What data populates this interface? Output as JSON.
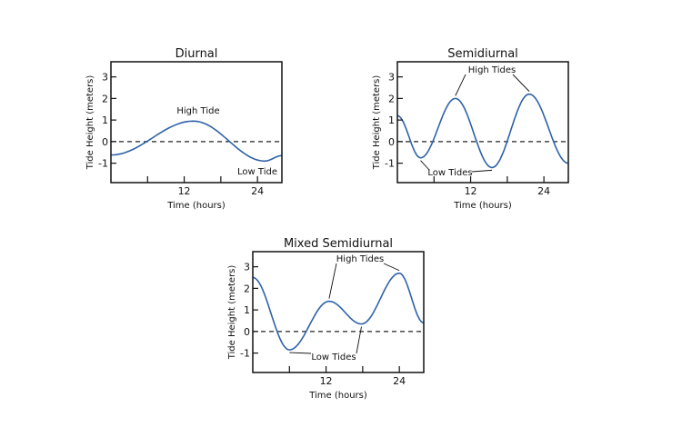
{
  "chart_data": [
    {
      "type": "line",
      "title": "Diurnal",
      "xlabel": "Time (hours)",
      "ylabel": "Tide Height (meters)",
      "xlim": [
        0,
        28
      ],
      "ylim": [
        -1.9,
        3.7
      ],
      "xticks": [
        6,
        12,
        18,
        24
      ],
      "xtick_labels": [
        "",
        "12",
        "",
        "24"
      ],
      "yticks": [
        3,
        2,
        1,
        0,
        -1
      ],
      "ytick_labels": [
        "3",
        "2",
        "1",
        "0",
        "-1"
      ],
      "reference_line": 0,
      "series": [
        {
          "name": "tide",
          "color": "#2e62a8",
          "extrema": [
            [
              0,
              -0.62
            ],
            [
              13.5,
              0.95
            ],
            [
              25.2,
              -0.9
            ],
            [
              28,
              -0.65
            ]
          ]
        }
      ],
      "annotations": [
        {
          "text": "High Tide",
          "targets": []
        },
        {
          "text": "Low Tide",
          "targets": []
        }
      ]
    },
    {
      "type": "line",
      "title": "Semidiurnal",
      "xlabel": "Time (hours)",
      "ylabel": "Tide Height (meters)",
      "xlim": [
        0,
        28
      ],
      "ylim": [
        -1.9,
        3.7
      ],
      "xticks": [
        6,
        12,
        18,
        24
      ],
      "xtick_labels": [
        "",
        "12",
        "",
        "24"
      ],
      "yticks": [
        3,
        2,
        1,
        0,
        -1
      ],
      "ytick_labels": [
        "3",
        "2",
        "1",
        "0",
        "-1"
      ],
      "reference_line": 0,
      "series": [
        {
          "name": "tide",
          "color": "#2e62a8",
          "extrema": [
            [
              0,
              1.2
            ],
            [
              3.8,
              -0.75
            ],
            [
              9.5,
              2.0
            ],
            [
              15.5,
              -1.2
            ],
            [
              21.6,
              2.2
            ],
            [
              28,
              -1.0
            ]
          ]
        }
      ],
      "annotations": [
        {
          "text": "High Tides",
          "targets": [
            [
              9.5,
              2.0
            ],
            [
              21.6,
              2.2
            ]
          ]
        },
        {
          "text": "Low Tides",
          "targets": [
            [
              3.8,
              -0.75
            ],
            [
              15.5,
              -1.2
            ]
          ]
        }
      ]
    },
    {
      "type": "line",
      "title": "Mixed Semidiurnal",
      "xlabel": "Time (hours)",
      "ylabel": "Tide Height (meters)",
      "xlim": [
        0,
        28
      ],
      "ylim": [
        -1.9,
        3.7
      ],
      "xticks": [
        6,
        12,
        18,
        24
      ],
      "xtick_labels": [
        "",
        "12",
        "",
        "24"
      ],
      "yticks": [
        3,
        2,
        1,
        0,
        -1
      ],
      "ytick_labels": [
        "3",
        "2",
        "1",
        "0",
        "-1"
      ],
      "reference_line": 0,
      "series": [
        {
          "name": "tide",
          "color": "#2e62a8",
          "extrema": [
            [
              0,
              2.5
            ],
            [
              6,
              -0.85
            ],
            [
              12.5,
              1.4
            ],
            [
              17.8,
              0.35
            ],
            [
              24,
              2.7
            ],
            [
              28,
              0.4
            ]
          ]
        }
      ],
      "annotations": [
        {
          "text": "High Tides",
          "targets": [
            [
              12.5,
              1.4
            ],
            [
              24,
              2.7
            ]
          ]
        },
        {
          "text": "Low Tides",
          "targets": [
            [
              6,
              -0.85
            ],
            [
              17.8,
              0.35
            ]
          ]
        }
      ]
    }
  ]
}
